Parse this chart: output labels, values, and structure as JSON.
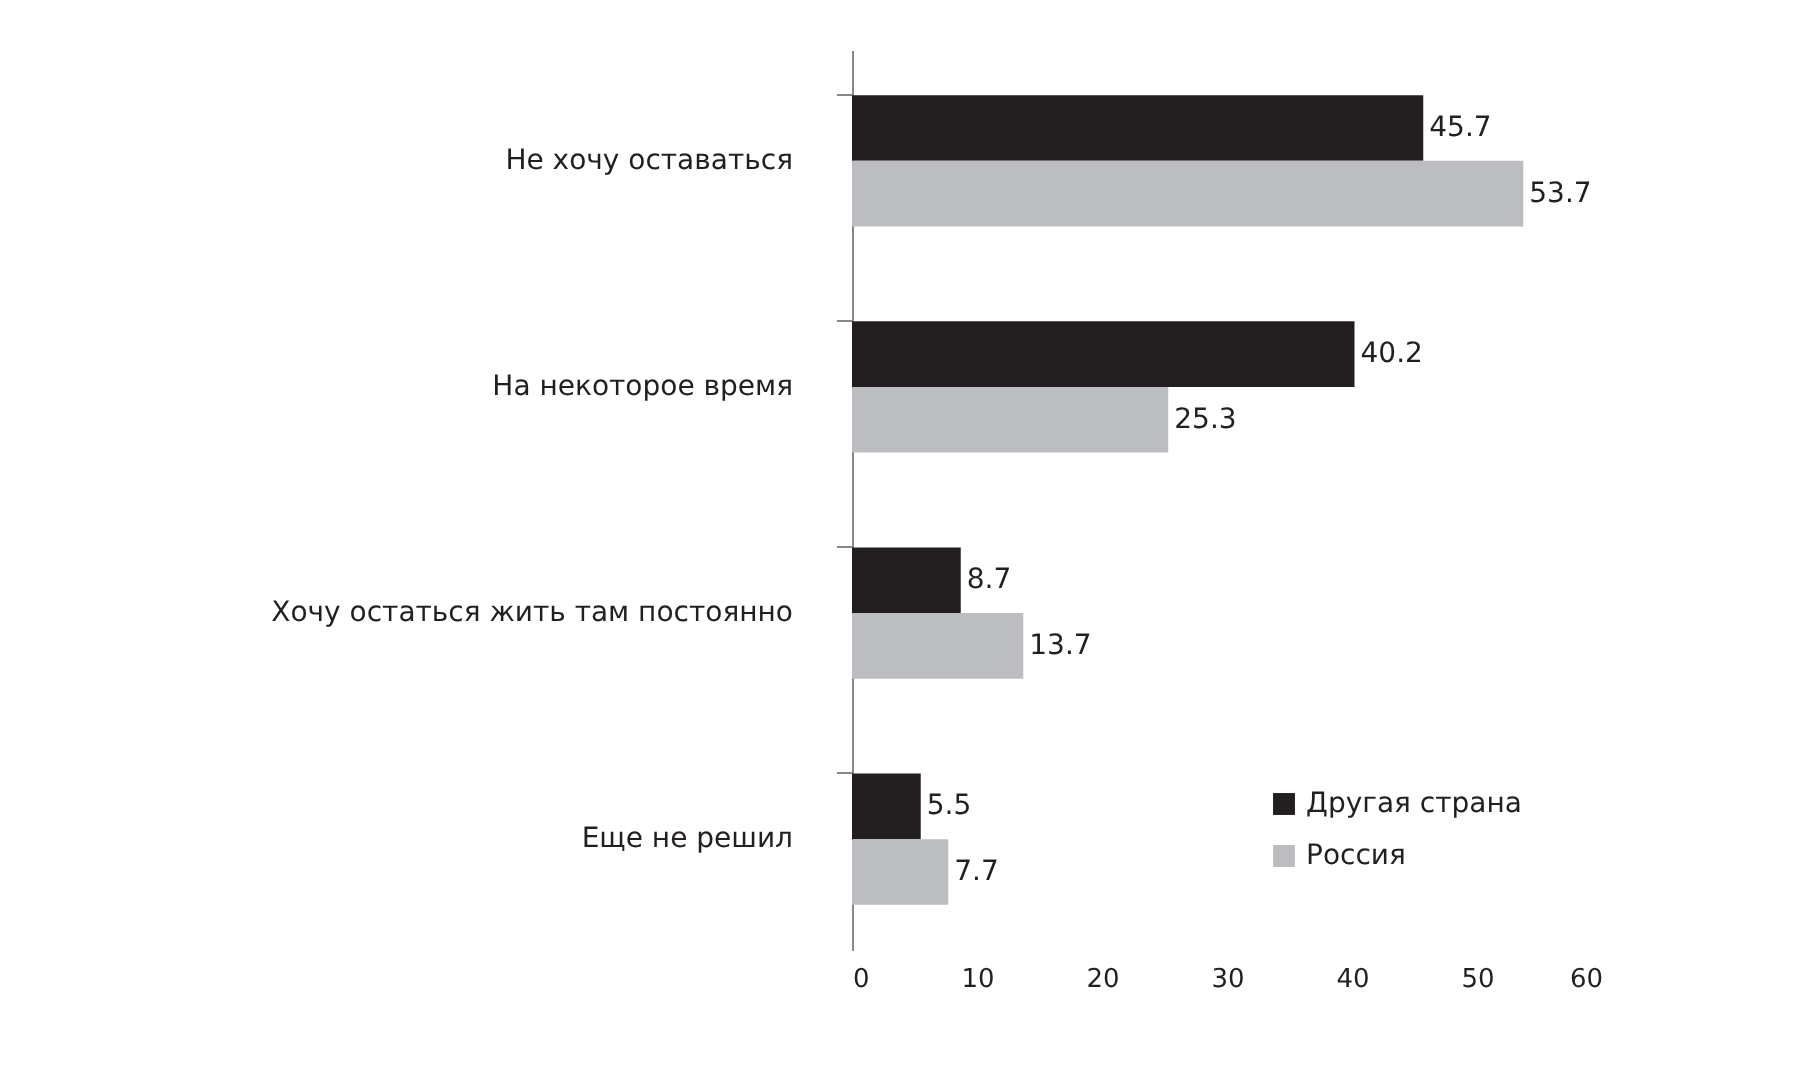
{
  "chart_data": {
    "type": "bar",
    "orientation": "horizontal",
    "categories": [
      "Не хочу оставаться",
      "На некоторое время",
      "Хочу остаться жить там постоянно",
      "Еще не решил"
    ],
    "series": [
      {
        "name": "Другая страна",
        "color": "#231f20",
        "values": [
          45.7,
          40.2,
          8.7,
          5.5
        ]
      },
      {
        "name": "Россия",
        "color": "#bcbdc0",
        "values": [
          53.7,
          25.3,
          13.7,
          7.7
        ]
      }
    ],
    "xlim": [
      0,
      60
    ],
    "xticks": [
      0,
      10,
      20,
      30,
      40,
      50,
      60
    ],
    "grid": false,
    "legend": "bottom right",
    "data_labels": true
  }
}
